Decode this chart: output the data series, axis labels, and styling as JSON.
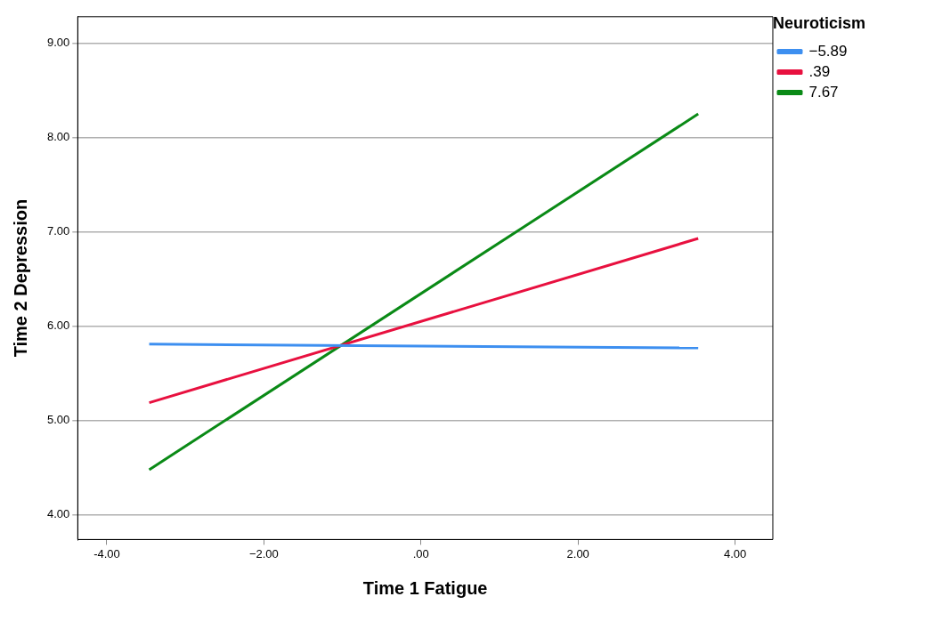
{
  "chart_data": {
    "type": "line",
    "xlabel": "Time 1 Fatigue",
    "ylabel": "Time 2 Depression",
    "legend_title": "Neuroticism",
    "legend": "top right",
    "grid": "y",
    "marker": "none",
    "line_style": "solid",
    "xlim": [
      -4.37,
      4.48
    ],
    "ylim": [
      3.74,
      9.28
    ],
    "xticks": [
      {
        "value": -4,
        "label": "-4.00"
      },
      {
        "value": -2,
        "label": "−2.00"
      },
      {
        "value": 0,
        "label": ".00"
      },
      {
        "value": 2,
        "label": "2.00"
      },
      {
        "value": 4,
        "label": "4.00"
      }
    ],
    "yticks": [
      {
        "value": 4,
        "label": "4.00"
      },
      {
        "value": 5,
        "label": "5.00"
      },
      {
        "value": 6,
        "label": "6.00"
      },
      {
        "value": 7,
        "label": "7.00"
      },
      {
        "value": 8,
        "label": "8.00"
      },
      {
        "value": 9,
        "label": "9.00"
      }
    ],
    "x": [
      -3.46,
      3.53
    ],
    "series": [
      {
        "name": "−5.89",
        "color": "#3d8ff0",
        "values": [
          5.81,
          5.77
        ]
      },
      {
        "name": ".39",
        "color": "#e8103f",
        "values": [
          5.19,
          6.93
        ]
      },
      {
        "name": "7.67",
        "color": "#0a8a16",
        "values": [
          4.48,
          8.25
        ]
      }
    ]
  }
}
